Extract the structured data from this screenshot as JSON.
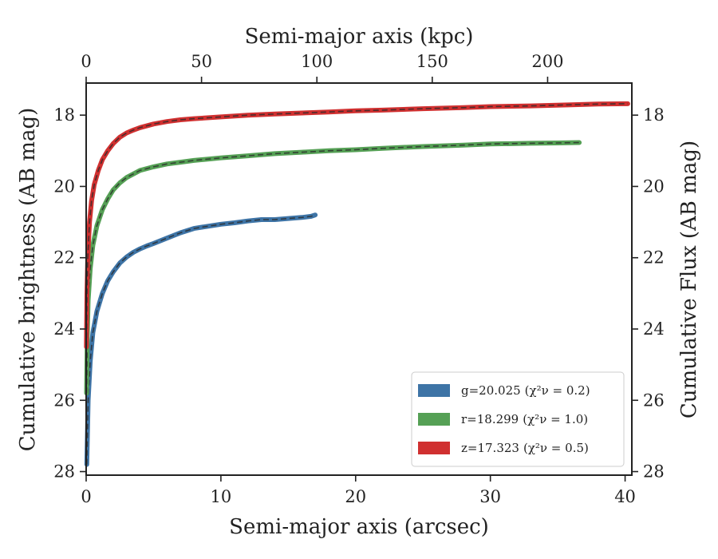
{
  "chart_data": {
    "type": "line",
    "xlabel": "Semi-major axis (arcsec)",
    "ylabel": "Cumulative brightness (AB mag)",
    "x2label": "Semi-major axis (kpc)",
    "y2label": "Cumulative Flux (AB mag)",
    "xlim": [
      0,
      40.5
    ],
    "ylim": [
      28.1,
      17.1
    ],
    "x2lim": [
      0,
      236.5
    ],
    "y_inverted": true,
    "grid": false,
    "legend_position": "lower-right",
    "xticks": [
      0,
      10,
      20,
      30,
      40
    ],
    "yticks": [
      18,
      20,
      22,
      24,
      26,
      28
    ],
    "x2ticks": [
      0,
      50,
      100,
      150,
      200
    ],
    "series": [
      {
        "name": "g=20.025",
        "chi2_label": "(χ²ν = 0.2)",
        "color": "#3e74a6",
        "x": [
          0.05,
          0.15,
          0.3,
          0.5,
          0.8,
          1.2,
          1.6,
          2.0,
          2.5,
          3.0,
          3.5,
          4.0,
          4.5,
          5.0,
          6.0,
          7.0,
          8.0,
          9.0,
          10.0,
          11.0,
          12.0,
          13.0,
          14.0,
          15.0,
          16.0,
          16.7,
          17.0
        ],
        "y": [
          27.8,
          26.0,
          24.9,
          24.1,
          23.5,
          23.0,
          22.65,
          22.4,
          22.15,
          21.98,
          21.85,
          21.75,
          21.67,
          21.6,
          21.45,
          21.3,
          21.18,
          21.12,
          21.06,
          21.02,
          20.97,
          20.93,
          20.93,
          20.9,
          20.87,
          20.84,
          20.8
        ]
      },
      {
        "name": "r=18.299",
        "chi2_label": "(χ²ν = 1.0)",
        "color": "#55a055",
        "x": [
          0.03,
          0.08,
          0.15,
          0.3,
          0.5,
          0.8,
          1.2,
          1.6,
          2.0,
          2.5,
          3.0,
          4.0,
          5.0,
          6.0,
          7.0,
          8.0,
          10.0,
          12.0,
          14.0,
          16.0,
          18.0,
          20.0,
          22.0,
          25.0,
          28.0,
          30.0,
          33.0,
          35.0,
          36.6
        ],
        "y": [
          25.8,
          24.2,
          23.2,
          22.3,
          21.65,
          21.1,
          20.65,
          20.35,
          20.1,
          19.9,
          19.75,
          19.55,
          19.45,
          19.37,
          19.32,
          19.27,
          19.2,
          19.14,
          19.08,
          19.04,
          19.0,
          18.97,
          18.93,
          18.88,
          18.84,
          18.81,
          18.79,
          18.78,
          18.77
        ]
      },
      {
        "name": "z=17.323",
        "chi2_label": "(χ²ν = 0.5)",
        "color": "#d03030",
        "x": [
          0.02,
          0.06,
          0.12,
          0.25,
          0.4,
          0.6,
          0.9,
          1.2,
          1.6,
          2.0,
          2.5,
          3.0,
          3.5,
          4.0,
          5.0,
          6.0,
          7.0,
          8.0,
          10.0,
          12.0,
          14.0,
          16.0,
          18.0,
          20.0,
          22.0,
          25.0,
          28.0,
          30.0,
          33.0,
          36.0,
          38.0,
          40.2
        ],
        "y": [
          24.5,
          23.0,
          22.0,
          21.0,
          20.4,
          19.95,
          19.55,
          19.25,
          19.0,
          18.8,
          18.62,
          18.5,
          18.42,
          18.35,
          18.25,
          18.18,
          18.13,
          18.1,
          18.05,
          18.0,
          17.97,
          17.94,
          17.91,
          17.88,
          17.86,
          17.82,
          17.79,
          17.76,
          17.74,
          17.71,
          17.69,
          17.68
        ]
      }
    ]
  }
}
